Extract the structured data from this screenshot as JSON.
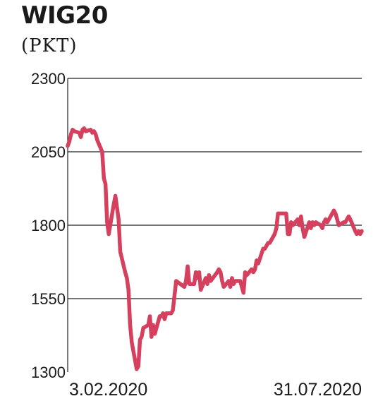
{
  "chart_data": {
    "type": "line",
    "title": "WIG20",
    "subtitle": "(PKT)",
    "xlabel": "",
    "ylabel": "",
    "ylim": [
      1300,
      2300
    ],
    "yticks": [
      2300,
      2050,
      1800,
      1550,
      1300
    ],
    "xtick_labels": [
      "3.02.2020",
      "31.07.2020"
    ],
    "x": [
      "2020-02-03",
      "2020-02-04",
      "2020-02-05",
      "2020-02-06",
      "2020-02-07",
      "2020-02-10",
      "2020-02-11",
      "2020-02-12",
      "2020-02-13",
      "2020-02-14",
      "2020-02-17",
      "2020-02-18",
      "2020-02-19",
      "2020-02-20",
      "2020-02-21",
      "2020-02-24",
      "2020-02-25",
      "2020-02-26",
      "2020-02-27",
      "2020-02-28",
      "2020-03-02",
      "2020-03-03",
      "2020-03-04",
      "2020-03-05",
      "2020-03-06",
      "2020-03-09",
      "2020-03-10",
      "2020-03-11",
      "2020-03-12",
      "2020-03-13",
      "2020-03-16",
      "2020-03-17",
      "2020-03-18",
      "2020-03-19",
      "2020-03-20",
      "2020-03-23",
      "2020-03-24",
      "2020-03-25",
      "2020-03-26",
      "2020-03-27",
      "2020-03-30",
      "2020-03-31",
      "2020-04-01",
      "2020-04-02",
      "2020-04-03",
      "2020-04-06",
      "2020-04-07",
      "2020-04-08",
      "2020-04-09",
      "2020-04-14",
      "2020-04-15",
      "2020-04-16",
      "2020-04-17",
      "2020-04-20",
      "2020-04-21",
      "2020-04-22",
      "2020-04-23",
      "2020-04-24",
      "2020-04-27",
      "2020-04-28",
      "2020-04-29",
      "2020-04-30",
      "2020-05-04",
      "2020-05-05",
      "2020-05-06",
      "2020-05-07",
      "2020-05-08",
      "2020-05-11",
      "2020-05-12",
      "2020-05-13",
      "2020-05-14",
      "2020-05-15",
      "2020-05-18",
      "2020-05-19",
      "2020-05-20",
      "2020-05-21",
      "2020-05-22",
      "2020-05-25",
      "2020-05-26",
      "2020-05-27",
      "2020-05-28",
      "2020-05-29",
      "2020-06-01",
      "2020-06-02",
      "2020-06-03",
      "2020-06-04",
      "2020-06-05",
      "2020-06-08",
      "2020-06-09",
      "2020-06-10",
      "2020-06-12",
      "2020-06-15",
      "2020-06-16",
      "2020-06-17",
      "2020-06-18",
      "2020-06-19",
      "2020-06-22",
      "2020-06-23",
      "2020-06-24",
      "2020-06-25",
      "2020-06-26",
      "2020-06-29",
      "2020-06-30",
      "2020-07-01",
      "2020-07-02",
      "2020-07-03",
      "2020-07-06",
      "2020-07-07",
      "2020-07-08",
      "2020-07-09",
      "2020-07-10",
      "2020-07-13",
      "2020-07-14",
      "2020-07-15",
      "2020-07-16",
      "2020-07-17",
      "2020-07-20",
      "2020-07-21",
      "2020-07-22",
      "2020-07-23",
      "2020-07-24",
      "2020-07-27",
      "2020-07-28",
      "2020-07-29",
      "2020-07-30",
      "2020-07-31"
    ],
    "series": [
      {
        "color": "#d4405e",
        "values": [
          2070,
          2085,
          2110,
          2125,
          2120,
          2115,
          2100,
          2125,
          2130,
          2120,
          2125,
          2115,
          2120,
          2110,
          2090,
          2050,
          1960,
          1940,
          1810,
          1770,
          1870,
          1900,
          1860,
          1820,
          1710,
          1640,
          1620,
          1580,
          1460,
          1400,
          1310,
          1320,
          1410,
          1420,
          1450,
          1460,
          1490,
          1420,
          1460,
          1430,
          1490,
          1490,
          1500,
          1480,
          1500,
          1500,
          1510,
          1560,
          1610,
          1590,
          1610,
          1660,
          1600,
          1600,
          1640,
          1620,
          1640,
          1580,
          1620,
          1600,
          1630,
          1610,
          1640,
          1650,
          1640,
          1610,
          1590,
          1610,
          1590,
          1620,
          1600,
          1610,
          1610,
          1590,
          1570,
          1640,
          1630,
          1650,
          1640,
          1650,
          1680,
          1670,
          1720,
          1720,
          1730,
          1740,
          1740,
          1770,
          1790,
          1840,
          1840,
          1840,
          1770,
          1770,
          1810,
          1800,
          1820,
          1800,
          1830,
          1790,
          1760,
          1810,
          1790,
          1810,
          1800,
          1810,
          1800,
          1790,
          1810,
          1820,
          1810,
          1840,
          1850,
          1840,
          1820,
          1800,
          1810,
          1810,
          1820,
          1830,
          1820,
          1780,
          1770,
          1780,
          1770,
          1780
        ]
      }
    ],
    "grid": "horizontal"
  }
}
